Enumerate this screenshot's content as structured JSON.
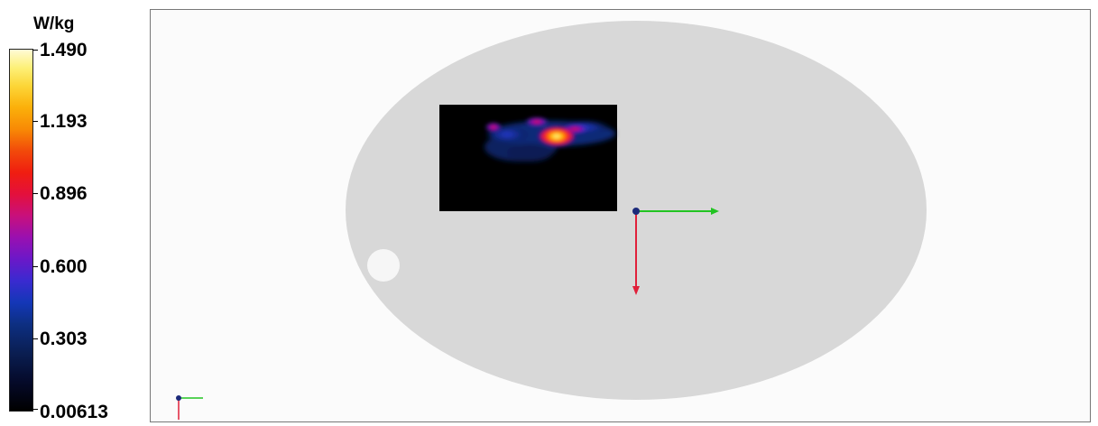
{
  "legend": {
    "unit": "W/kg",
    "ticks": [
      "1.490",
      "1.193",
      "0.896",
      "0.600",
      "0.303",
      "0.00613"
    ]
  },
  "viewport": {
    "phantom_color": "#d8d8d8",
    "scan_background": "#000000",
    "axis_x_color": "#22c422",
    "axis_y_color": "#e0203a",
    "axis_origin_color": "#1c2a7a"
  }
}
